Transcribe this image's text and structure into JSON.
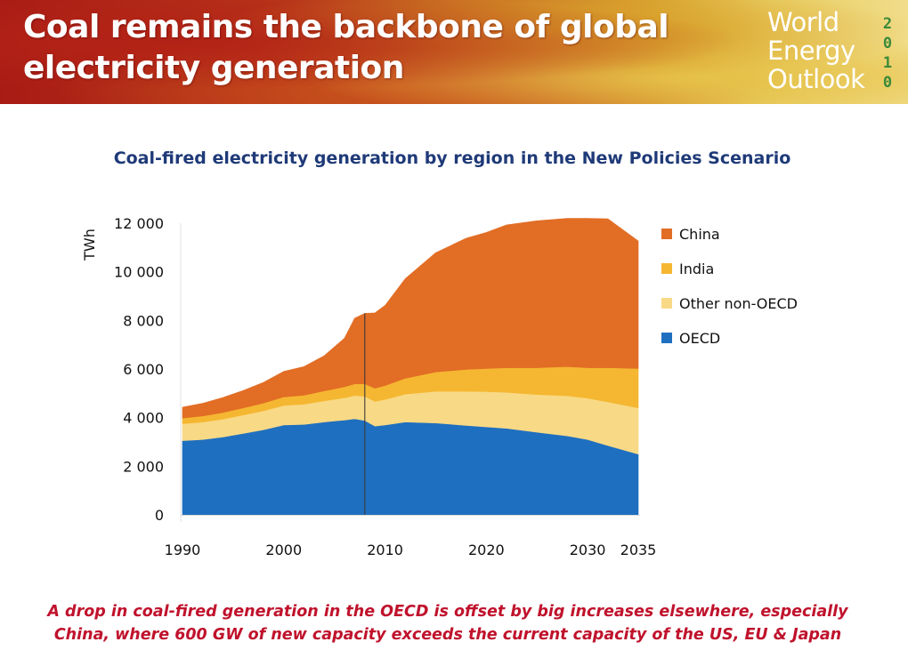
{
  "slide": {
    "title_line1": "Coal remains the backbone of global",
    "title_line2": "electricity generation",
    "logo": {
      "line1": "World",
      "line2": "Energy",
      "line3": "Outlook",
      "year": "2010"
    },
    "caption_line1": "A drop in coal-fired generation in the OECD is offset by big increases elsewhere, especially",
    "caption_line2": "China, where 600 GW of new capacity exceeds the current capacity of the US, EU & Japan"
  },
  "chart_data": {
    "type": "area",
    "stacked": true,
    "title": "Coal-fired electricity generation by region in the New Policies Scenario",
    "ylabel": "TWh",
    "xlabel": "",
    "x": [
      1990,
      1992,
      1994,
      1996,
      1998,
      2000,
      2002,
      2004,
      2006,
      2007,
      2008,
      2009,
      2010,
      2012,
      2015,
      2018,
      2020,
      2022,
      2025,
      2028,
      2030,
      2032,
      2035
    ],
    "xticks": [
      1990,
      2000,
      2010,
      2020,
      2030,
      2035
    ],
    "xtick_labels": [
      "1990",
      "2000",
      "2010",
      "2020",
      "2030",
      "2035"
    ],
    "ylim": [
      0,
      12000
    ],
    "yticks": [
      0,
      2000,
      4000,
      6000,
      8000,
      10000,
      12000
    ],
    "ytick_labels": [
      "0",
      "2 000",
      "4 000",
      "6 000",
      "8 000",
      "10 000",
      "12 000"
    ],
    "historical_end_marker": 2008,
    "legend_position": "right",
    "series": [
      {
        "name": "OECD",
        "color": "#1f6fc0",
        "values": [
          3050,
          3100,
          3200,
          3350,
          3500,
          3700,
          3720,
          3820,
          3900,
          3950,
          3880,
          3650,
          3700,
          3820,
          3780,
          3680,
          3620,
          3560,
          3400,
          3250,
          3100,
          2850,
          2500
        ]
      },
      {
        "name": "Other non-OECD",
        "color": "#f8d985",
        "values": [
          700,
          720,
          740,
          760,
          780,
          800,
          830,
          870,
          920,
          960,
          1000,
          1020,
          1050,
          1150,
          1300,
          1400,
          1450,
          1480,
          1550,
          1650,
          1700,
          1800,
          1900
        ]
      },
      {
        "name": "India",
        "color": "#f5b731",
        "values": [
          230,
          250,
          270,
          290,
          320,
          350,
          370,
          410,
          450,
          480,
          510,
          540,
          570,
          650,
          800,
          900,
          950,
          1010,
          1100,
          1200,
          1250,
          1400,
          1620
        ]
      },
      {
        "name": "China",
        "color": "#e26d25",
        "values": [
          450,
          520,
          620,
          720,
          850,
          1050,
          1180,
          1450,
          2000,
          2700,
          2900,
          3100,
          3300,
          4100,
          4900,
          5400,
          5600,
          5880,
          6050,
          6100,
          6150,
          6130,
          5250
        ]
      }
    ],
    "legend_order": [
      "China",
      "India",
      "Other non-OECD",
      "OECD"
    ]
  }
}
